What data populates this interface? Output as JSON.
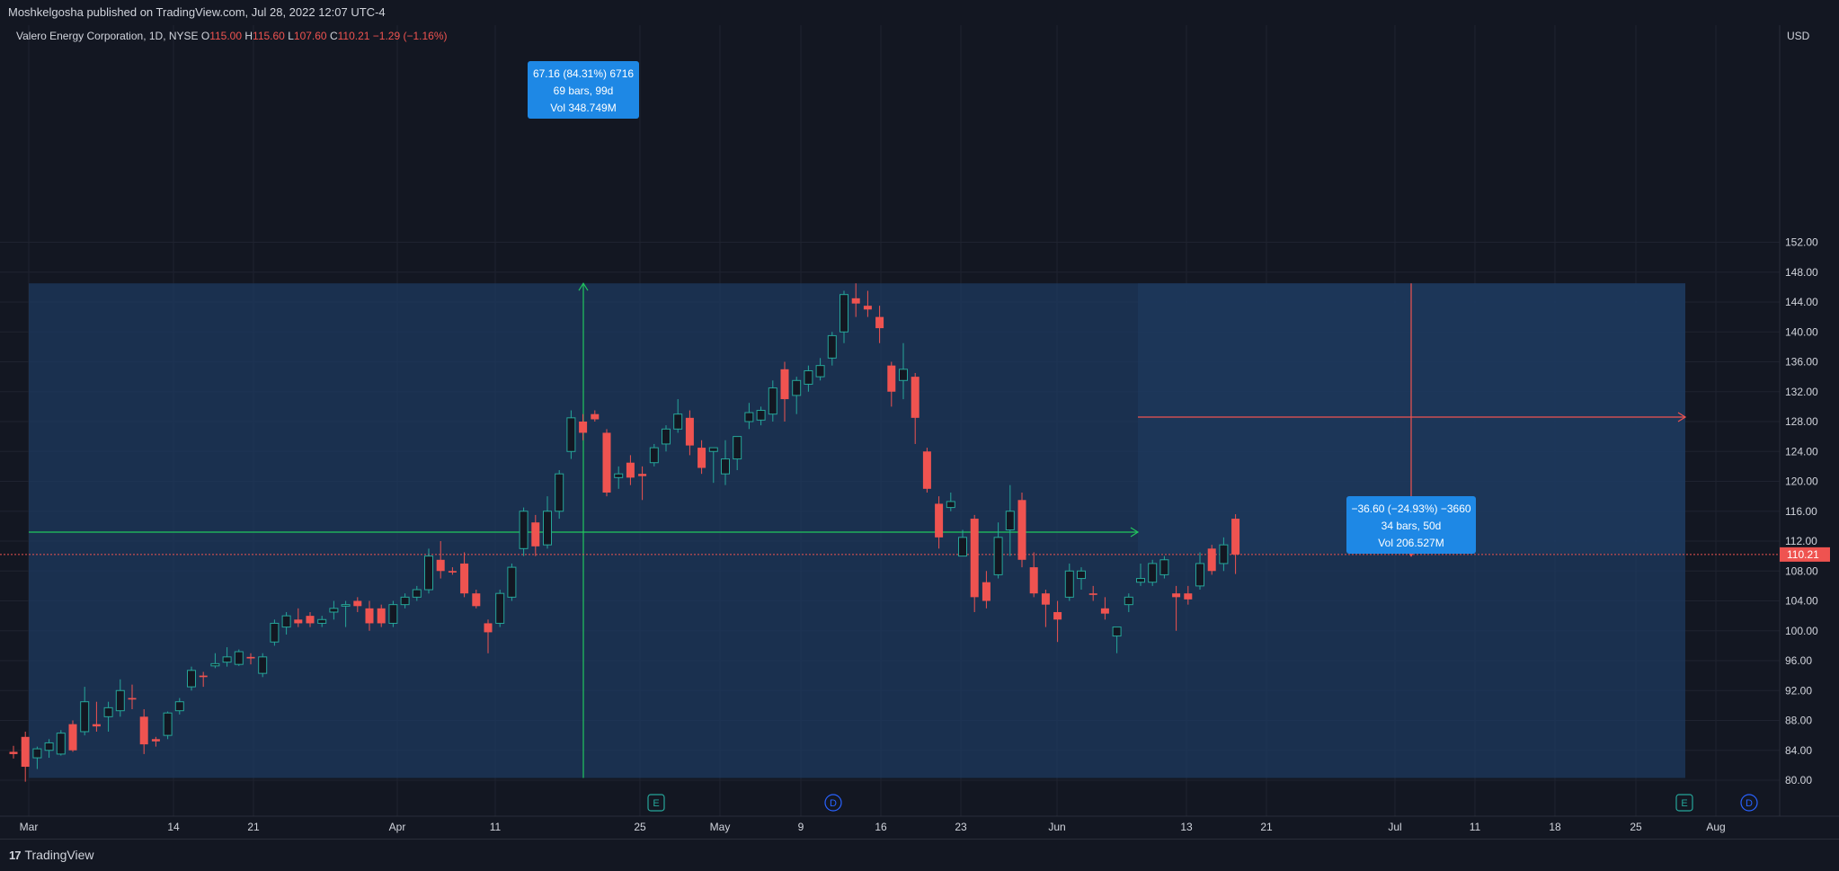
{
  "header": {
    "published_text": "Moshkelgosha published on TradingView.com, Jul 28, 2022 12:07 UTC-4"
  },
  "footer": {
    "brand": "TradingView"
  },
  "symbol_bar": {
    "name": "Valero Energy Corporation, 1D, NYSE",
    "o_label": "O",
    "o": "115.00",
    "h_label": "H",
    "h": "115.60",
    "l_label": "L",
    "l": "107.60",
    "c_label": "C",
    "c": "110.21",
    "change": "−1.29 (−1.16%)"
  },
  "colors": {
    "background": "#131722",
    "up": "#26a69a",
    "down": "#ef5350",
    "measure_fill": "#1e3a5f",
    "label_blue": "#2962ff",
    "green_line": "#22c55e",
    "red_line": "#ef5350",
    "grid": "#1f2330"
  },
  "annotations": {
    "measure_up": {
      "line1": "67.16 (84.31%) 6716",
      "line2": "69 bars, 99d",
      "line3": "Vol 348.749M"
    },
    "measure_down": {
      "line1": "−36.60 (−24.93%) −3660",
      "line2": "34 bars, 50d",
      "line3": "Vol 206.527M"
    },
    "events": [
      {
        "icon": "earnings-icon",
        "glyph": "E",
        "date": "Apr 26"
      },
      {
        "icon": "dividend-icon",
        "glyph": "D",
        "date": "May 12"
      },
      {
        "icon": "earnings-icon",
        "glyph": "E",
        "date": "Jul 28"
      },
      {
        "icon": "dividend-icon",
        "glyph": "D",
        "date": "Aug 1"
      }
    ]
  },
  "chart_data": {
    "type": "candlestick",
    "currency": "USD",
    "last_price": "110.21",
    "ylim": [
      78,
      154
    ],
    "y_ticks": [
      "152.00",
      "148.00",
      "144.00",
      "140.00",
      "136.00",
      "132.00",
      "128.00",
      "124.00",
      "120.00",
      "116.00",
      "112.00",
      "108.00",
      "104.00",
      "100.00",
      "96.00",
      "92.00",
      "88.00",
      "84.00",
      "80.00"
    ],
    "x_ticks": [
      "Mar",
      "14",
      "21",
      "Apr",
      "11",
      "25",
      "May",
      "9",
      "16",
      "23",
      "Jun",
      "13",
      "21",
      "Jul",
      "11",
      "18",
      "25",
      "Aug"
    ],
    "candles": [
      {
        "o": 83.8,
        "h": 84.6,
        "l": 82.9,
        "c": 83.5
      },
      {
        "o": 85.8,
        "h": 86.5,
        "l": 79.8,
        "c": 81.8
      },
      {
        "o": 83.0,
        "h": 84.5,
        "l": 81.5,
        "c": 84.2
      },
      {
        "o": 84.0,
        "h": 85.5,
        "l": 83.0,
        "c": 85.0
      },
      {
        "o": 83.5,
        "h": 86.7,
        "l": 83.3,
        "c": 86.3
      },
      {
        "o": 87.5,
        "h": 88.0,
        "l": 83.8,
        "c": 84.0
      },
      {
        "o": 86.5,
        "h": 92.5,
        "l": 86.0,
        "c": 90.5
      },
      {
        "o": 87.5,
        "h": 90.5,
        "l": 86.5,
        "c": 87.2
      },
      {
        "o": 88.5,
        "h": 90.5,
        "l": 86.5,
        "c": 89.7
      },
      {
        "o": 89.3,
        "h": 93.5,
        "l": 88.5,
        "c": 92.0
      },
      {
        "o": 91.0,
        "h": 92.8,
        "l": 89.5,
        "c": 90.8
      },
      {
        "o": 88.5,
        "h": 89.5,
        "l": 83.5,
        "c": 84.8
      },
      {
        "o": 85.5,
        "h": 85.8,
        "l": 84.5,
        "c": 85.2
      },
      {
        "o": 86.0,
        "h": 89.2,
        "l": 85.5,
        "c": 89.0
      },
      {
        "o": 89.3,
        "h": 91.0,
        "l": 88.8,
        "c": 90.5
      },
      {
        "o": 92.5,
        "h": 95.2,
        "l": 92.0,
        "c": 94.7
      },
      {
        "o": 94.0,
        "h": 94.5,
        "l": 92.5,
        "c": 93.8
      },
      {
        "o": 95.3,
        "h": 97.0,
        "l": 95.0,
        "c": 95.6
      },
      {
        "o": 95.8,
        "h": 97.8,
        "l": 95.2,
        "c": 96.5
      },
      {
        "o": 95.5,
        "h": 97.5,
        "l": 95.3,
        "c": 97.2
      },
      {
        "o": 96.5,
        "h": 97.0,
        "l": 95.5,
        "c": 96.3
      },
      {
        "o": 94.3,
        "h": 97.0,
        "l": 93.8,
        "c": 96.5
      },
      {
        "o": 98.5,
        "h": 101.5,
        "l": 98.0,
        "c": 101.0
      },
      {
        "o": 100.5,
        "h": 102.5,
        "l": 99.5,
        "c": 102.0
      },
      {
        "o": 101.5,
        "h": 103.0,
        "l": 100.5,
        "c": 101.0
      },
      {
        "o": 102.0,
        "h": 102.5,
        "l": 100.5,
        "c": 101.0
      },
      {
        "o": 101.0,
        "h": 102.0,
        "l": 100.5,
        "c": 101.5
      },
      {
        "o": 102.5,
        "h": 104.0,
        "l": 101.5,
        "c": 103.0
      },
      {
        "o": 103.3,
        "h": 104.0,
        "l": 100.5,
        "c": 103.5
      },
      {
        "o": 104.0,
        "h": 104.5,
        "l": 102.5,
        "c": 103.3
      },
      {
        "o": 103.0,
        "h": 104.0,
        "l": 100.0,
        "c": 101.0
      },
      {
        "o": 103.0,
        "h": 103.5,
        "l": 100.5,
        "c": 101.0
      },
      {
        "o": 101.0,
        "h": 104.0,
        "l": 100.5,
        "c": 103.5
      },
      {
        "o": 103.5,
        "h": 105.0,
        "l": 103.0,
        "c": 104.5
      },
      {
        "o": 104.5,
        "h": 106.0,
        "l": 104.0,
        "c": 105.5
      },
      {
        "o": 105.5,
        "h": 111.0,
        "l": 105.0,
        "c": 110.0
      },
      {
        "o": 109.5,
        "h": 112.0,
        "l": 107.0,
        "c": 108.0
      },
      {
        "o": 108.0,
        "h": 108.5,
        "l": 107.5,
        "c": 107.8
      },
      {
        "o": 109.0,
        "h": 110.5,
        "l": 104.5,
        "c": 105.0
      },
      {
        "o": 105.0,
        "h": 105.5,
        "l": 103.0,
        "c": 103.3
      },
      {
        "o": 101.0,
        "h": 101.5,
        "l": 97.0,
        "c": 99.8
      },
      {
        "o": 101.0,
        "h": 105.5,
        "l": 100.5,
        "c": 105.0
      },
      {
        "o": 104.5,
        "h": 109.0,
        "l": 104.0,
        "c": 108.5
      },
      {
        "o": 111.0,
        "h": 116.5,
        "l": 110.0,
        "c": 116.0
      },
      {
        "o": 114.5,
        "h": 115.5,
        "l": 110.0,
        "c": 111.3
      },
      {
        "o": 111.5,
        "h": 118.0,
        "l": 111.0,
        "c": 116.0
      },
      {
        "o": 116.0,
        "h": 121.5,
        "l": 115.0,
        "c": 121.0
      },
      {
        "o": 124.0,
        "h": 129.5,
        "l": 123.0,
        "c": 128.5
      },
      {
        "o": 128.0,
        "h": 129.0,
        "l": 125.5,
        "c": 126.5
      },
      {
        "o": 129.0,
        "h": 129.5,
        "l": 128.0,
        "c": 128.3
      },
      {
        "o": 126.5,
        "h": 127.0,
        "l": 118.0,
        "c": 118.5
      },
      {
        "o": 120.5,
        "h": 122.0,
        "l": 119.0,
        "c": 121.0
      },
      {
        "o": 122.5,
        "h": 123.5,
        "l": 119.5,
        "c": 120.5
      },
      {
        "o": 121.0,
        "h": 122.0,
        "l": 117.5,
        "c": 120.7
      },
      {
        "o": 122.5,
        "h": 125.0,
        "l": 122.0,
        "c": 124.5
      },
      {
        "o": 125.0,
        "h": 127.5,
        "l": 124.0,
        "c": 127.0
      },
      {
        "o": 127.0,
        "h": 131.0,
        "l": 126.5,
        "c": 129.0
      },
      {
        "o": 128.5,
        "h": 129.5,
        "l": 123.5,
        "c": 124.8
      },
      {
        "o": 124.5,
        "h": 125.5,
        "l": 121.0,
        "c": 121.8
      },
      {
        "o": 124.0,
        "h": 124.5,
        "l": 119.8,
        "c": 124.5
      },
      {
        "o": 121.0,
        "h": 125.5,
        "l": 119.5,
        "c": 123.0
      },
      {
        "o": 123.0,
        "h": 126.0,
        "l": 121.5,
        "c": 126.0
      },
      {
        "o": 128.0,
        "h": 130.5,
        "l": 127.0,
        "c": 129.2
      },
      {
        "o": 128.2,
        "h": 130.0,
        "l": 127.5,
        "c": 129.5
      },
      {
        "o": 129.0,
        "h": 133.5,
        "l": 128.0,
        "c": 132.5
      },
      {
        "o": 135.0,
        "h": 136.0,
        "l": 128.0,
        "c": 131.0
      },
      {
        "o": 131.5,
        "h": 134.0,
        "l": 129.0,
        "c": 133.5
      },
      {
        "o": 133.0,
        "h": 135.5,
        "l": 132.0,
        "c": 134.8
      },
      {
        "o": 134.0,
        "h": 136.5,
        "l": 133.5,
        "c": 135.5
      },
      {
        "o": 136.5,
        "h": 140.0,
        "l": 135.5,
        "c": 139.5
      },
      {
        "o": 140.0,
        "h": 145.5,
        "l": 138.5,
        "c": 145.0
      },
      {
        "o": 144.5,
        "h": 146.5,
        "l": 142.0,
        "c": 143.8
      },
      {
        "o": 143.5,
        "h": 145.5,
        "l": 142.0,
        "c": 143.0
      },
      {
        "o": 142.0,
        "h": 143.5,
        "l": 138.5,
        "c": 140.5
      },
      {
        "o": 135.5,
        "h": 136.0,
        "l": 130.0,
        "c": 132.0
      },
      {
        "o": 133.5,
        "h": 138.5,
        "l": 131.0,
        "c": 135.0
      },
      {
        "o": 134.0,
        "h": 134.5,
        "l": 125.0,
        "c": 128.5
      },
      {
        "o": 124.0,
        "h": 124.5,
        "l": 118.5,
        "c": 119.0
      },
      {
        "o": 117.0,
        "h": 118.0,
        "l": 111.0,
        "c": 112.5
      },
      {
        "o": 116.5,
        "h": 118.5,
        "l": 116.0,
        "c": 117.3
      },
      {
        "o": 110.0,
        "h": 113.5,
        "l": 110.0,
        "c": 112.5
      },
      {
        "o": 115.0,
        "h": 115.5,
        "l": 102.5,
        "c": 104.5
      },
      {
        "o": 106.5,
        "h": 108.0,
        "l": 103.0,
        "c": 104.0
      },
      {
        "o": 107.5,
        "h": 114.5,
        "l": 107.0,
        "c": 112.5
      },
      {
        "o": 113.5,
        "h": 119.5,
        "l": 110.0,
        "c": 116.0
      },
      {
        "o": 117.5,
        "h": 118.5,
        "l": 108.5,
        "c": 109.5
      },
      {
        "o": 108.5,
        "h": 110.5,
        "l": 104.5,
        "c": 105.0
      },
      {
        "o": 105.0,
        "h": 105.5,
        "l": 100.5,
        "c": 103.5
      },
      {
        "o": 102.5,
        "h": 104.0,
        "l": 98.5,
        "c": 101.5
      },
      {
        "o": 104.5,
        "h": 109.0,
        "l": 104.0,
        "c": 108.0
      },
      {
        "o": 107.0,
        "h": 108.5,
        "l": 105.5,
        "c": 108.0
      },
      {
        "o": 105.0,
        "h": 106.0,
        "l": 104.0,
        "c": 104.8
      },
      {
        "o": 103.0,
        "h": 104.5,
        "l": 101.5,
        "c": 102.3
      },
      {
        "o": 99.3,
        "h": 100.5,
        "l": 97.0,
        "c": 100.5
      },
      {
        "o": 103.5,
        "h": 105.0,
        "l": 102.5,
        "c": 104.5
      },
      {
        "o": 106.5,
        "h": 109.0,
        "l": 106.0,
        "c": 107.0
      },
      {
        "o": 106.5,
        "h": 109.5,
        "l": 106.0,
        "c": 109.0
      },
      {
        "o": 107.5,
        "h": 110.0,
        "l": 107.0,
        "c": 109.5
      },
      {
        "o": 105.0,
        "h": 106.0,
        "l": 100.0,
        "c": 104.5
      },
      {
        "o": 105.0,
        "h": 106.0,
        "l": 103.5,
        "c": 104.2
      },
      {
        "o": 106.0,
        "h": 110.5,
        "l": 105.5,
        "c": 109.0
      },
      {
        "o": 111.0,
        "h": 111.5,
        "l": 107.5,
        "c": 108.0
      },
      {
        "o": 109.0,
        "h": 112.5,
        "l": 108.0,
        "c": 111.5
      },
      {
        "o": 115.0,
        "h": 115.6,
        "l": 107.6,
        "c": 110.21
      }
    ]
  }
}
